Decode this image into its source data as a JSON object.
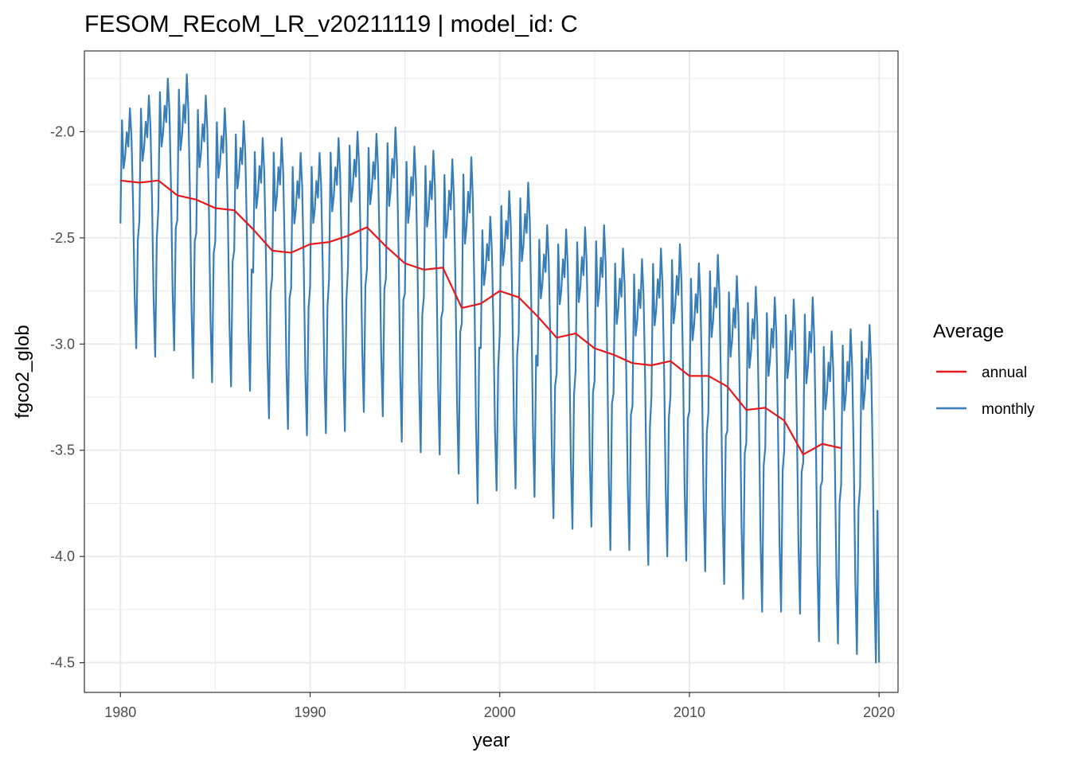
{
  "chart_data": {
    "type": "line",
    "title": "FESOM_REcoM_LR_v20211119 | model_id: C",
    "xlabel": "year",
    "ylabel": "fgco2_glob",
    "xlim": [
      1978.1,
      2021.0
    ],
    "ylim": [
      -4.64,
      -1.62
    ],
    "x_ticks": [
      1980,
      1990,
      2000,
      2010,
      2020
    ],
    "x_tick_labels": [
      "1980",
      "1990",
      "2000",
      "2010",
      "2020"
    ],
    "y_ticks": [
      -2.0,
      -2.5,
      -3.0,
      -3.5,
      -4.0,
      -4.5
    ],
    "y_tick_labels": [
      "-2.0",
      "-2.5",
      "-3.0",
      "-3.5",
      "-4.0",
      "-4.5"
    ],
    "grid": true,
    "legend": {
      "title": "Average",
      "position": "right",
      "entries": [
        {
          "label": "annual",
          "color": "#E41A1C"
        },
        {
          "label": "monthly",
          "color": "#377EB8"
        }
      ]
    },
    "series": [
      {
        "name": "annual",
        "color": "#E41A1C",
        "x": [
          1980,
          1981,
          1982,
          1983,
          1984,
          1985,
          1986,
          1987,
          1988,
          1989,
          1990,
          1991,
          1992,
          1993,
          1994,
          1995,
          1996,
          1997,
          1998,
          1999,
          2000,
          2001,
          2002,
          2003,
          2004,
          2005,
          2006,
          2007,
          2008,
          2009,
          2010,
          2011,
          2012,
          2013,
          2014,
          2015,
          2016,
          2017,
          2018
        ],
        "y": [
          -2.23,
          -2.24,
          -2.23,
          -2.3,
          -2.32,
          -2.36,
          -2.37,
          -2.46,
          -2.56,
          -2.57,
          -2.53,
          -2.52,
          -2.49,
          -2.45,
          -2.54,
          -2.62,
          -2.65,
          -2.64,
          -2.83,
          -2.81,
          -2.75,
          -2.78,
          -2.87,
          -2.97,
          -2.95,
          -3.02,
          -3.05,
          -3.09,
          -3.1,
          -3.08,
          -3.15,
          -3.15,
          -3.2,
          -3.31,
          -3.3,
          -3.36,
          -3.52,
          -3.47,
          -3.49
        ]
      },
      {
        "name": "monthly",
        "color": "#377EB8",
        "start_year": 1980,
        "step_months": 1,
        "year_min": [
          -3.02,
          -3.06,
          -3.03,
          -3.16,
          -3.18,
          -3.2,
          -3.22,
          -3.35,
          -3.4,
          -3.43,
          -3.42,
          -3.41,
          -3.32,
          -3.34,
          -3.46,
          -3.51,
          -3.52,
          -3.61,
          -3.75,
          -3.69,
          -3.68,
          -3.72,
          -3.82,
          -3.87,
          -3.86,
          -3.97,
          -3.97,
          -4.04,
          -4.0,
          -4.02,
          -4.07,
          -4.13,
          -4.2,
          -4.26,
          -4.26,
          -4.27,
          -4.4,
          -4.41,
          -4.46,
          -4.5
        ],
        "year_max": [
          -1.89,
          -1.83,
          -1.75,
          -1.73,
          -1.83,
          -1.89,
          -1.95,
          -2.03,
          -2.03,
          -2.1,
          -2.1,
          -2.03,
          -2.0,
          -2.01,
          -1.98,
          -2.07,
          -2.09,
          -2.13,
          -2.12,
          -2.4,
          -2.28,
          -2.24,
          -2.44,
          -2.46,
          -2.45,
          -2.44,
          -2.55,
          -2.6,
          -2.55,
          -2.53,
          -2.62,
          -2.58,
          -2.68,
          -2.73,
          -2.78,
          -2.79,
          -2.78,
          -2.94,
          -2.93,
          -2.91
        ],
        "seasonal_profile": [
          0.48,
          0.05,
          0.25,
          0.2,
          0.1,
          0.16,
          0.0,
          0.12,
          0.4,
          0.78,
          1.0,
          0.55
        ],
        "last_value": -4.5
      }
    ]
  }
}
